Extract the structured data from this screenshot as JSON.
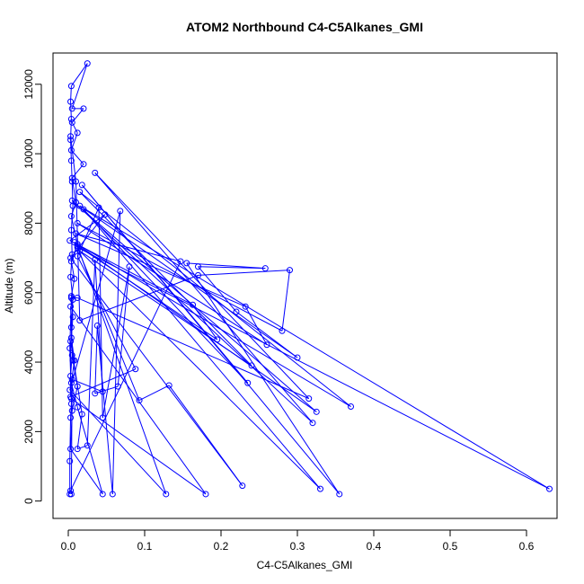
{
  "chart_data": {
    "type": "line",
    "title": "ATOM2 Northbound C4-C5Alkanes_GMI",
    "xlabel": "C4-C5Alkanes_GMI",
    "ylabel": "Altitude (m)",
    "xlim": [
      0,
      0.65
    ],
    "ylim": [
      0,
      12600
    ],
    "x_ticks": [
      "0.0",
      "0.1",
      "0.2",
      "0.3",
      "0.4",
      "0.5",
      "0.6"
    ],
    "y_ticks": [
      "0",
      "2000",
      "4000",
      "6000",
      "8000",
      "10000",
      "12000"
    ],
    "grid": false,
    "marker": "open-circle",
    "series_color": "#0000ff",
    "series": [
      {
        "points": [
          [
            0.002,
            200
          ],
          [
            0.002,
            1150
          ],
          [
            0.003,
            2400
          ],
          [
            0.004,
            2800
          ],
          [
            0.003,
            3600
          ],
          [
            0.005,
            4200
          ],
          [
            0.004,
            5000
          ],
          [
            0.006,
            5800
          ],
          [
            0.003,
            6450
          ],
          [
            0.005,
            7100
          ],
          [
            0.004,
            7800
          ],
          [
            0.006,
            8500
          ],
          [
            0.005,
            9200
          ],
          [
            0.004,
            9800
          ],
          [
            0.003,
            10400
          ],
          [
            0.004,
            11000
          ],
          [
            0.003,
            11500
          ],
          [
            0.004,
            11950
          ],
          [
            0.025,
            12600
          ],
          [
            0.005,
            11300
          ],
          [
            0.02,
            11300
          ],
          [
            0.005,
            10900
          ],
          [
            0.012,
            10600
          ],
          [
            0.004,
            10100
          ],
          [
            0.02,
            9700
          ],
          [
            0.005,
            9300
          ],
          [
            0.01,
            8600
          ],
          [
            0.004,
            8200
          ],
          [
            0.012,
            7400
          ],
          [
            0.004,
            6900
          ],
          [
            0.008,
            6400
          ],
          [
            0.004,
            5900
          ],
          [
            0.006,
            5300
          ],
          [
            0.004,
            4700
          ],
          [
            0.008,
            4050
          ],
          [
            0.004,
            3400
          ],
          [
            0.012,
            2700
          ],
          [
            0.045,
            200
          ],
          [
            0.003,
            1500
          ],
          [
            0.005,
            2600
          ],
          [
            0.012,
            3300
          ],
          [
            0.006,
            4050
          ],
          [
            0.003,
            5600
          ],
          [
            0.18,
            200
          ],
          [
            0.004,
            2950
          ],
          [
            0.002,
            4400
          ],
          [
            0.004,
            5850
          ],
          [
            0.012,
            5850
          ],
          [
            0.315,
            2950
          ],
          [
            0.035,
            9450
          ],
          [
            0.32,
            2250
          ],
          [
            0.005,
            8650
          ],
          [
            0.325,
            2570
          ],
          [
            0.008,
            7450
          ],
          [
            0.37,
            2720
          ],
          [
            0.015,
            8900
          ],
          [
            0.24,
            3900
          ],
          [
            0.015,
            7200
          ],
          [
            0.33,
            350
          ],
          [
            0.02,
            8400
          ],
          [
            0.235,
            3400
          ],
          [
            0.018,
            9100
          ],
          [
            0.355,
            200
          ],
          [
            0.155,
            6850
          ],
          [
            0.258,
            6700
          ],
          [
            0.17,
            6750
          ],
          [
            0.22,
            5450
          ],
          [
            0.3,
            4130
          ],
          [
            0.015,
            8500
          ],
          [
            0.63,
            350
          ],
          [
            0.012,
            7300
          ],
          [
            0.093,
            2900
          ],
          [
            0.132,
            3330
          ],
          [
            0.228,
            440
          ],
          [
            0.003,
            7000
          ],
          [
            0.048,
            8250
          ],
          [
            0.002,
            7500
          ],
          [
            0.163,
            5650
          ],
          [
            0.195,
            4650
          ],
          [
            0.012,
            7350
          ],
          [
            0.128,
            200
          ],
          [
            0.002,
            3200
          ],
          [
            0.068,
            8350
          ],
          [
            0.058,
            200
          ],
          [
            0.038,
            5050
          ],
          [
            0.035,
            3100
          ],
          [
            0.065,
            3300
          ],
          [
            0.08,
            6750
          ],
          [
            0.045,
            2400
          ],
          [
            0.04,
            8450
          ],
          [
            0.012,
            7050
          ],
          [
            0.088,
            3800
          ],
          [
            0.003,
            3000
          ],
          [
            0.003,
            4600
          ],
          [
            0.018,
            2500
          ],
          [
            0.012,
            1500
          ],
          [
            0.025,
            1600
          ],
          [
            0.035,
            6950
          ],
          [
            0.045,
            3150
          ],
          [
            0.005,
            3500
          ],
          [
            0.004,
            200
          ],
          [
            0.003,
            300
          ],
          [
            0.147,
            6900
          ],
          [
            0.01,
            7700
          ],
          [
            0.232,
            5600
          ],
          [
            0.26,
            4500
          ],
          [
            0.012,
            8000
          ],
          [
            0.28,
            4900
          ],
          [
            0.29,
            6650
          ],
          [
            0.17,
            6500
          ],
          [
            0.015,
            5200
          ],
          [
            0.01,
            9200
          ],
          [
            0.003,
            10500
          ]
        ]
      }
    ]
  }
}
